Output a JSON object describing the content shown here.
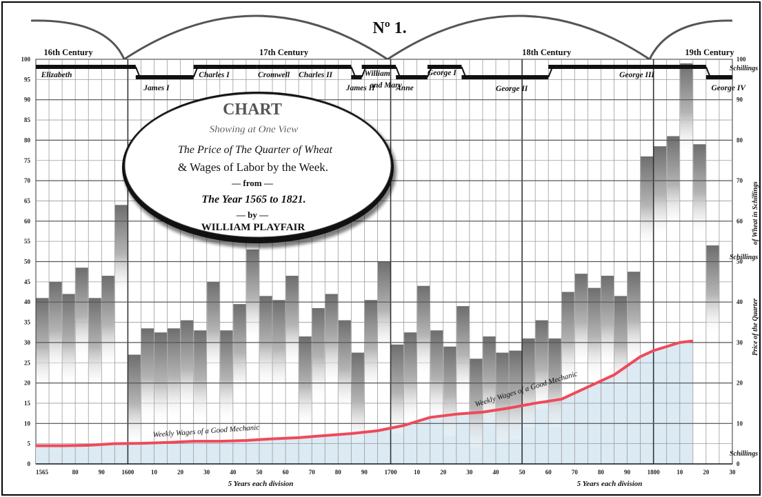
{
  "chart_data": {
    "type": "bar",
    "title": "CHART",
    "cartouche": {
      "title": "CHART",
      "line1": "Showing at One View",
      "line2": "The Price of The Quarter of Wheat",
      "line3": "& Wages of Labor by the Week.",
      "line4": "— from —",
      "line5": "The Year 1565 to 1821.",
      "line6": "— by —",
      "line7": "WILLIAM PLAYFAIR"
    },
    "plate_number": "Nº 1.",
    "xlim": [
      1565,
      1830
    ],
    "ylim": [
      0,
      100
    ],
    "x_ticks": [
      {
        "value": 1565,
        "label": "1565"
      },
      {
        "value": 1580,
        "label": "80"
      },
      {
        "value": 1590,
        "label": "90"
      },
      {
        "value": 1600,
        "label": "1600"
      },
      {
        "value": 1610,
        "label": "10"
      },
      {
        "value": 1620,
        "label": "20"
      },
      {
        "value": 1630,
        "label": "30"
      },
      {
        "value": 1640,
        "label": "40"
      },
      {
        "value": 1650,
        "label": "50"
      },
      {
        "value": 1660,
        "label": "60"
      },
      {
        "value": 1670,
        "label": "70"
      },
      {
        "value": 1680,
        "label": "80"
      },
      {
        "value": 1690,
        "label": "90"
      },
      {
        "value": 1700,
        "label": "1700"
      },
      {
        "value": 1710,
        "label": "10"
      },
      {
        "value": 1720,
        "label": "20"
      },
      {
        "value": 1730,
        "label": "30"
      },
      {
        "value": 1740,
        "label": "40"
      },
      {
        "value": 1750,
        "label": "50"
      },
      {
        "value": 1760,
        "label": "60"
      },
      {
        "value": 1770,
        "label": "70"
      },
      {
        "value": 1780,
        "label": "80"
      },
      {
        "value": 1790,
        "label": "90"
      },
      {
        "value": 1800,
        "label": "1800"
      },
      {
        "value": 1810,
        "label": "10"
      },
      {
        "value": 1820,
        "label": "20"
      },
      {
        "value": 1830,
        "label": "30"
      }
    ],
    "y_ticks": [
      0,
      5,
      10,
      15,
      20,
      25,
      30,
      35,
      40,
      45,
      50,
      55,
      60,
      65,
      70,
      75,
      80,
      85,
      90,
      95,
      100
    ],
    "right_ticks": [
      0,
      10,
      20,
      30,
      40,
      50,
      60,
      70,
      80,
      90,
      100
    ],
    "xlabel_left": "5 Years each division",
    "xlabel_right": "5 Years each division",
    "ylabel_right": "Price of the Quarter of Wheat in Schillings",
    "ylabel_right_parts": [
      "Price of the Quarter",
      "of Wheat in Schillings"
    ],
    "unit_labels": [
      "Schillings",
      "Schillings",
      "Schillings"
    ],
    "wheat_price": {
      "x": [
        1565,
        1570,
        1575,
        1580,
        1585,
        1590,
        1595,
        1600,
        1605,
        1610,
        1615,
        1620,
        1625,
        1630,
        1635,
        1640,
        1645,
        1650,
        1655,
        1660,
        1665,
        1670,
        1675,
        1680,
        1685,
        1690,
        1695,
        1700,
        1705,
        1710,
        1715,
        1720,
        1725,
        1730,
        1735,
        1740,
        1745,
        1750,
        1755,
        1760,
        1765,
        1770,
        1775,
        1780,
        1785,
        1790,
        1795,
        1800,
        1805,
        1810,
        1815,
        1820
      ],
      "values": [
        41,
        45,
        42,
        48.5,
        41,
        46.5,
        64,
        27,
        33.5,
        32.5,
        33.5,
        35.5,
        33,
        45,
        33,
        39.5,
        53,
        41.5,
        40.5,
        46.5,
        31.5,
        38.5,
        42,
        35.5,
        27.5,
        40.5,
        50,
        29.5,
        32.5,
        44,
        33,
        29,
        39,
        26,
        31.5,
        27.5,
        28,
        31,
        35.5,
        31,
        42.5,
        47,
        43.5,
        46.5,
        41.5,
        47.5,
        76,
        78.5,
        81,
        99,
        79,
        54
      ]
    },
    "wages": {
      "name": "Weekly Wages of a Good Mechanic",
      "x": [
        1565,
        1575,
        1585,
        1595,
        1605,
        1615,
        1625,
        1635,
        1645,
        1655,
        1665,
        1675,
        1685,
        1695,
        1705,
        1715,
        1725,
        1735,
        1745,
        1755,
        1765,
        1775,
        1785,
        1795,
        1800,
        1805,
        1810,
        1815
      ],
      "values": [
        4.5,
        4.5,
        4.6,
        5.0,
        5.1,
        5.3,
        5.6,
        5.6,
        5.8,
        6.2,
        6.5,
        7.0,
        7.5,
        8.2,
        9.5,
        11.5,
        12.3,
        12.8,
        13.8,
        15.0,
        16.0,
        19.0,
        22.0,
        26.5,
        28.0,
        29.0,
        30.0,
        30.4
      ]
    },
    "wage_labels": [
      "Weekly Wages of a Good Mechanic",
      "Weekly Wages of a Good Mechanic"
    ],
    "centuries": [
      {
        "label": "16th Century",
        "x": 1568
      },
      {
        "label": "17th Century",
        "x": 1650
      },
      {
        "label": "18th Century",
        "x": 1750
      },
      {
        "label": "19th Century",
        "x": 1812
      }
    ],
    "reigns": [
      {
        "name": "Elizabeth",
        "start": 1565,
        "end": 1603,
        "level": "high",
        "label_x": 1567,
        "label_level": "under-high"
      },
      {
        "name": "James I",
        "start": 1603,
        "end": 1625,
        "level": "low",
        "label_x": 1606,
        "label_level": "under-low"
      },
      {
        "name": "Charles I",
        "start": 1625,
        "end": 1649,
        "level": "high",
        "label_x": 1627,
        "label_level": "under-high"
      },
      {
        "name": "Cromwell",
        "start": 1649,
        "end": 1660,
        "level": "high",
        "label_x": 1649.5,
        "label_level": "under-high"
      },
      {
        "name": "Charles II",
        "start": 1660,
        "end": 1685,
        "level": "high",
        "label_x": 1665,
        "label_level": "under-high"
      },
      {
        "name": "James II",
        "start": 1685,
        "end": 1689,
        "level": "low",
        "label_x": 1683,
        "label_level": "under-low"
      },
      {
        "name": "William and Mary",
        "start": 1689,
        "end": 1702,
        "level": "high",
        "label_x": 1690,
        "label_level": "stacked"
      },
      {
        "name": "Anne",
        "start": 1702,
        "end": 1714,
        "level": "low",
        "label_x": 1702,
        "label_level": "under-low"
      },
      {
        "name": "George I",
        "start": 1714,
        "end": 1727,
        "level": "high",
        "label_x": 1714,
        "label_level": "over-high"
      },
      {
        "name": "George II",
        "start": 1727,
        "end": 1760,
        "level": "low",
        "label_x": 1740,
        "label_level": "under-low2"
      },
      {
        "name": "George III",
        "start": 1760,
        "end": 1820,
        "level": "high",
        "label_x": 1787,
        "label_level": "under-high"
      },
      {
        "name": "George IV",
        "start": 1820,
        "end": 1830,
        "level": "low",
        "label_x": 1822,
        "label_level": "under-low"
      }
    ],
    "grid": true,
    "legend": "none"
  }
}
